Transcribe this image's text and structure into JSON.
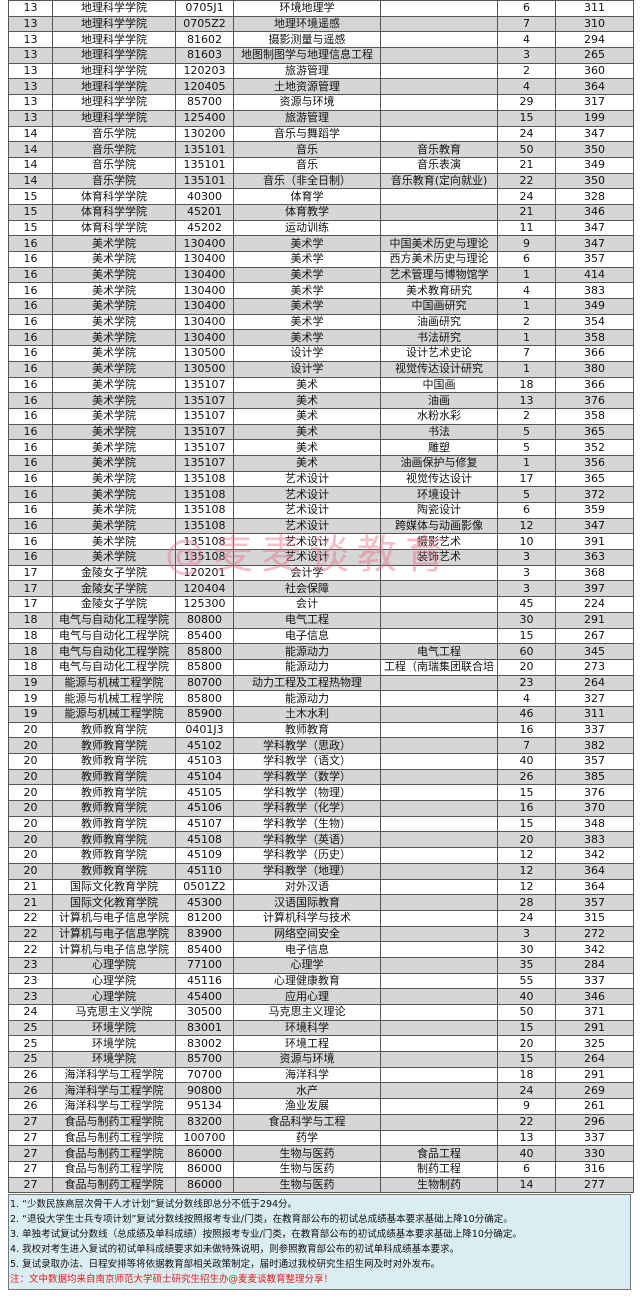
{
  "table": {
    "rows": [
      [
        "13",
        "地理科学学院",
        "0705J1",
        "环境地理学",
        "",
        "6",
        "311"
      ],
      [
        "13",
        "地理科学学院",
        "0705Z2",
        "地理环境遥感",
        "",
        "7",
        "310"
      ],
      [
        "13",
        "地理科学学院",
        "81602",
        "摄影测量与遥感",
        "",
        "4",
        "294"
      ],
      [
        "13",
        "地理科学学院",
        "81603",
        "地图制图学与地理信息工程",
        "",
        "3",
        "265"
      ],
      [
        "13",
        "地理科学学院",
        "120203",
        "旅游管理",
        "",
        "2",
        "360"
      ],
      [
        "13",
        "地理科学学院",
        "120405",
        "土地资源管理",
        "",
        "4",
        "364"
      ],
      [
        "13",
        "地理科学学院",
        "85700",
        "资源与环境",
        "",
        "29",
        "317"
      ],
      [
        "13",
        "地理科学学院",
        "125400",
        "旅游管理",
        "",
        "15",
        "199"
      ],
      [
        "14",
        "音乐学院",
        "130200",
        "音乐与舞蹈学",
        "",
        "24",
        "347"
      ],
      [
        "14",
        "音乐学院",
        "135101",
        "音乐",
        "音乐教育",
        "50",
        "350"
      ],
      [
        "14",
        "音乐学院",
        "135101",
        "音乐",
        "音乐表演",
        "21",
        "349"
      ],
      [
        "14",
        "音乐学院",
        "135101",
        "音乐（非全日制）",
        "音乐教育(定向就业)",
        "22",
        "350"
      ],
      [
        "15",
        "体育科学学院",
        "40300",
        "体育学",
        "",
        "24",
        "328"
      ],
      [
        "15",
        "体育科学学院",
        "45201",
        "体育教学",
        "",
        "21",
        "346"
      ],
      [
        "15",
        "体育科学学院",
        "45202",
        "运动训练",
        "",
        "11",
        "347"
      ],
      [
        "16",
        "美术学院",
        "130400",
        "美术学",
        "中国美术历史与理论",
        "9",
        "347"
      ],
      [
        "16",
        "美术学院",
        "130400",
        "美术学",
        "西方美术历史与理论",
        "6",
        "357"
      ],
      [
        "16",
        "美术学院",
        "130400",
        "美术学",
        "艺术管理与博物馆学",
        "1",
        "414"
      ],
      [
        "16",
        "美术学院",
        "130400",
        "美术学",
        "美术教育研究",
        "4",
        "383"
      ],
      [
        "16",
        "美术学院",
        "130400",
        "美术学",
        "中国画研究",
        "1",
        "349"
      ],
      [
        "16",
        "美术学院",
        "130400",
        "美术学",
        "油画研究",
        "2",
        "354"
      ],
      [
        "16",
        "美术学院",
        "130400",
        "美术学",
        "书法研究",
        "1",
        "358"
      ],
      [
        "16",
        "美术学院",
        "130500",
        "设计学",
        "设计艺术史论",
        "7",
        "366"
      ],
      [
        "16",
        "美术学院",
        "130500",
        "设计学",
        "视觉传达设计研究",
        "1",
        "380"
      ],
      [
        "16",
        "美术学院",
        "135107",
        "美术",
        "中国画",
        "18",
        "366"
      ],
      [
        "16",
        "美术学院",
        "135107",
        "美术",
        "油画",
        "13",
        "376"
      ],
      [
        "16",
        "美术学院",
        "135107",
        "美术",
        "水粉水彩",
        "2",
        "358"
      ],
      [
        "16",
        "美术学院",
        "135107",
        "美术",
        "书法",
        "5",
        "365"
      ],
      [
        "16",
        "美术学院",
        "135107",
        "美术",
        "雕塑",
        "5",
        "352"
      ],
      [
        "16",
        "美术学院",
        "135107",
        "美术",
        "油画保护与修复",
        "1",
        "356"
      ],
      [
        "16",
        "美术学院",
        "135108",
        "艺术设计",
        "视觉传达设计",
        "17",
        "365"
      ],
      [
        "16",
        "美术学院",
        "135108",
        "艺术设计",
        "环境设计",
        "5",
        "372"
      ],
      [
        "16",
        "美术学院",
        "135108",
        "艺术设计",
        "陶瓷设计",
        "6",
        "359"
      ],
      [
        "16",
        "美术学院",
        "135108",
        "艺术设计",
        "跨媒体与动画影像",
        "12",
        "347"
      ],
      [
        "16",
        "美术学院",
        "135108",
        "艺术设计",
        "摄影艺术",
        "10",
        "391"
      ],
      [
        "16",
        "美术学院",
        "135108",
        "艺术设计",
        "装饰艺术",
        "3",
        "363"
      ],
      [
        "17",
        "金陵女子学院",
        "120201",
        "会计学",
        "",
        "3",
        "368"
      ],
      [
        "17",
        "金陵女子学院",
        "120404",
        "社会保障",
        "",
        "3",
        "397"
      ],
      [
        "17",
        "金陵女子学院",
        "125300",
        "会计",
        "",
        "45",
        "224"
      ],
      [
        "18",
        "电气与自动化工程学院",
        "80800",
        "电气工程",
        "",
        "30",
        "291"
      ],
      [
        "18",
        "电气与自动化工程学院",
        "85400",
        "电子信息",
        "",
        "15",
        "267"
      ],
      [
        "18",
        "电气与自动化工程学院",
        "85800",
        "能源动力",
        "电气工程",
        "60",
        "345"
      ],
      [
        "18",
        "电气与自动化工程学院",
        "85800",
        "能源动力",
        "工程（南瑞集团联合培",
        "20",
        "273"
      ],
      [
        "19",
        "能源与机械工程学院",
        "80700",
        "动力工程及工程热物理",
        "",
        "23",
        "264"
      ],
      [
        "19",
        "能源与机械工程学院",
        "85800",
        "能源动力",
        "",
        "4",
        "327"
      ],
      [
        "19",
        "能源与机械工程学院",
        "85900",
        "土木水利",
        "",
        "46",
        "311"
      ],
      [
        "20",
        "教师教育学院",
        "0401J3",
        "教师教育",
        "",
        "16",
        "337"
      ],
      [
        "20",
        "教师教育学院",
        "45102",
        "学科教学（思政）",
        "",
        "7",
        "382"
      ],
      [
        "20",
        "教师教育学院",
        "45103",
        "学科教学（语文）",
        "",
        "40",
        "357"
      ],
      [
        "20",
        "教师教育学院",
        "45104",
        "学科教学（数学）",
        "",
        "26",
        "385"
      ],
      [
        "20",
        "教师教育学院",
        "45105",
        "学科教学（物理）",
        "",
        "15",
        "376"
      ],
      [
        "20",
        "教师教育学院",
        "45106",
        "学科教学（化学）",
        "",
        "16",
        "370"
      ],
      [
        "20",
        "教师教育学院",
        "45107",
        "学科教学（生物）",
        "",
        "15",
        "348"
      ],
      [
        "20",
        "教师教育学院",
        "45108",
        "学科教学（英语）",
        "",
        "20",
        "383"
      ],
      [
        "20",
        "教师教育学院",
        "45109",
        "学科教学（历史）",
        "",
        "12",
        "342"
      ],
      [
        "20",
        "教师教育学院",
        "45110",
        "学科教学（地理）",
        "",
        "12",
        "364"
      ],
      [
        "21",
        "国际文化教育学院",
        "0501Z2",
        "对外汉语",
        "",
        "12",
        "364"
      ],
      [
        "21",
        "国际文化教育学院",
        "45300",
        "汉语国际教育",
        "",
        "28",
        "357"
      ],
      [
        "22",
        "计算机与电子信息学院",
        "81200",
        "计算机科学与技术",
        "",
        "24",
        "315"
      ],
      [
        "22",
        "计算机与电子信息学院",
        "83900",
        "网络空间安全",
        "",
        "3",
        "272"
      ],
      [
        "22",
        "计算机与电子信息学院",
        "85400",
        "电子信息",
        "",
        "30",
        "342"
      ],
      [
        "23",
        "心理学院",
        "77100",
        "心理学",
        "",
        "35",
        "284"
      ],
      [
        "23",
        "心理学院",
        "45116",
        "心理健康教育",
        "",
        "55",
        "337"
      ],
      [
        "23",
        "心理学院",
        "45400",
        "应用心理",
        "",
        "40",
        "346"
      ],
      [
        "24",
        "马克思主义学院",
        "30500",
        "马克思主义理论",
        "",
        "50",
        "371"
      ],
      [
        "25",
        "环境学院",
        "83001",
        "环境科学",
        "",
        "15",
        "291"
      ],
      [
        "25",
        "环境学院",
        "83002",
        "环境工程",
        "",
        "20",
        "325"
      ],
      [
        "25",
        "环境学院",
        "85700",
        "资源与环境",
        "",
        "15",
        "264"
      ],
      [
        "26",
        "海洋科学与工程学院",
        "70700",
        "海洋科学",
        "",
        "18",
        "291"
      ],
      [
        "26",
        "海洋科学与工程学院",
        "90800",
        "水产",
        "",
        "24",
        "269"
      ],
      [
        "26",
        "海洋科学与工程学院",
        "95134",
        "渔业发展",
        "",
        "9",
        "261"
      ],
      [
        "27",
        "食品与制药工程学院",
        "83200",
        "食品科学与工程",
        "",
        "22",
        "296"
      ],
      [
        "27",
        "食品与制药工程学院",
        "100700",
        "药学",
        "",
        "13",
        "337"
      ],
      [
        "27",
        "食品与制药工程学院",
        "86000",
        "生物与医药",
        "食品工程",
        "40",
        "330"
      ],
      [
        "27",
        "食品与制药工程学院",
        "86000",
        "生物与医药",
        "制药工程",
        "6",
        "316"
      ],
      [
        "27",
        "食品与制药工程学院",
        "86000",
        "生物与医药",
        "生物制药",
        "14",
        "277"
      ]
    ]
  },
  "notes": [
    "1. “少数民族高层次骨干人才计划”复试分数线即总分不低于294分。",
    "2. “退役大学生士兵专项计划”复试分数线按照报考专业/门类，在教育部公布的初试总成绩基本要求基础上降10分确定。",
    "3. 单独考试复试分数线（总成绩及单科成绩）按照报考专业/门类，在教育部公布的初试成绩基本要求基础上降10分确定。",
    "4. 我校对考生进入复试的初试单科成绩要求如未做特殊说明，则参照教育部公布的初试单科成绩基本要求。",
    "5. 复试录取办法、日程安排等将依据教育部相关政策制定，届时通过我校研究生招生网及时对外发布。"
  ],
  "footnote": "注：文中数据均来自南京师范大学硕士研究生招生办@麦麦谈教育整理分享！",
  "watermark": "@麦麦谈教育",
  "colors": {
    "row_alt": "#d6d6d6",
    "notes_bg": "#daedf3",
    "footnote": "#e0201c"
  }
}
